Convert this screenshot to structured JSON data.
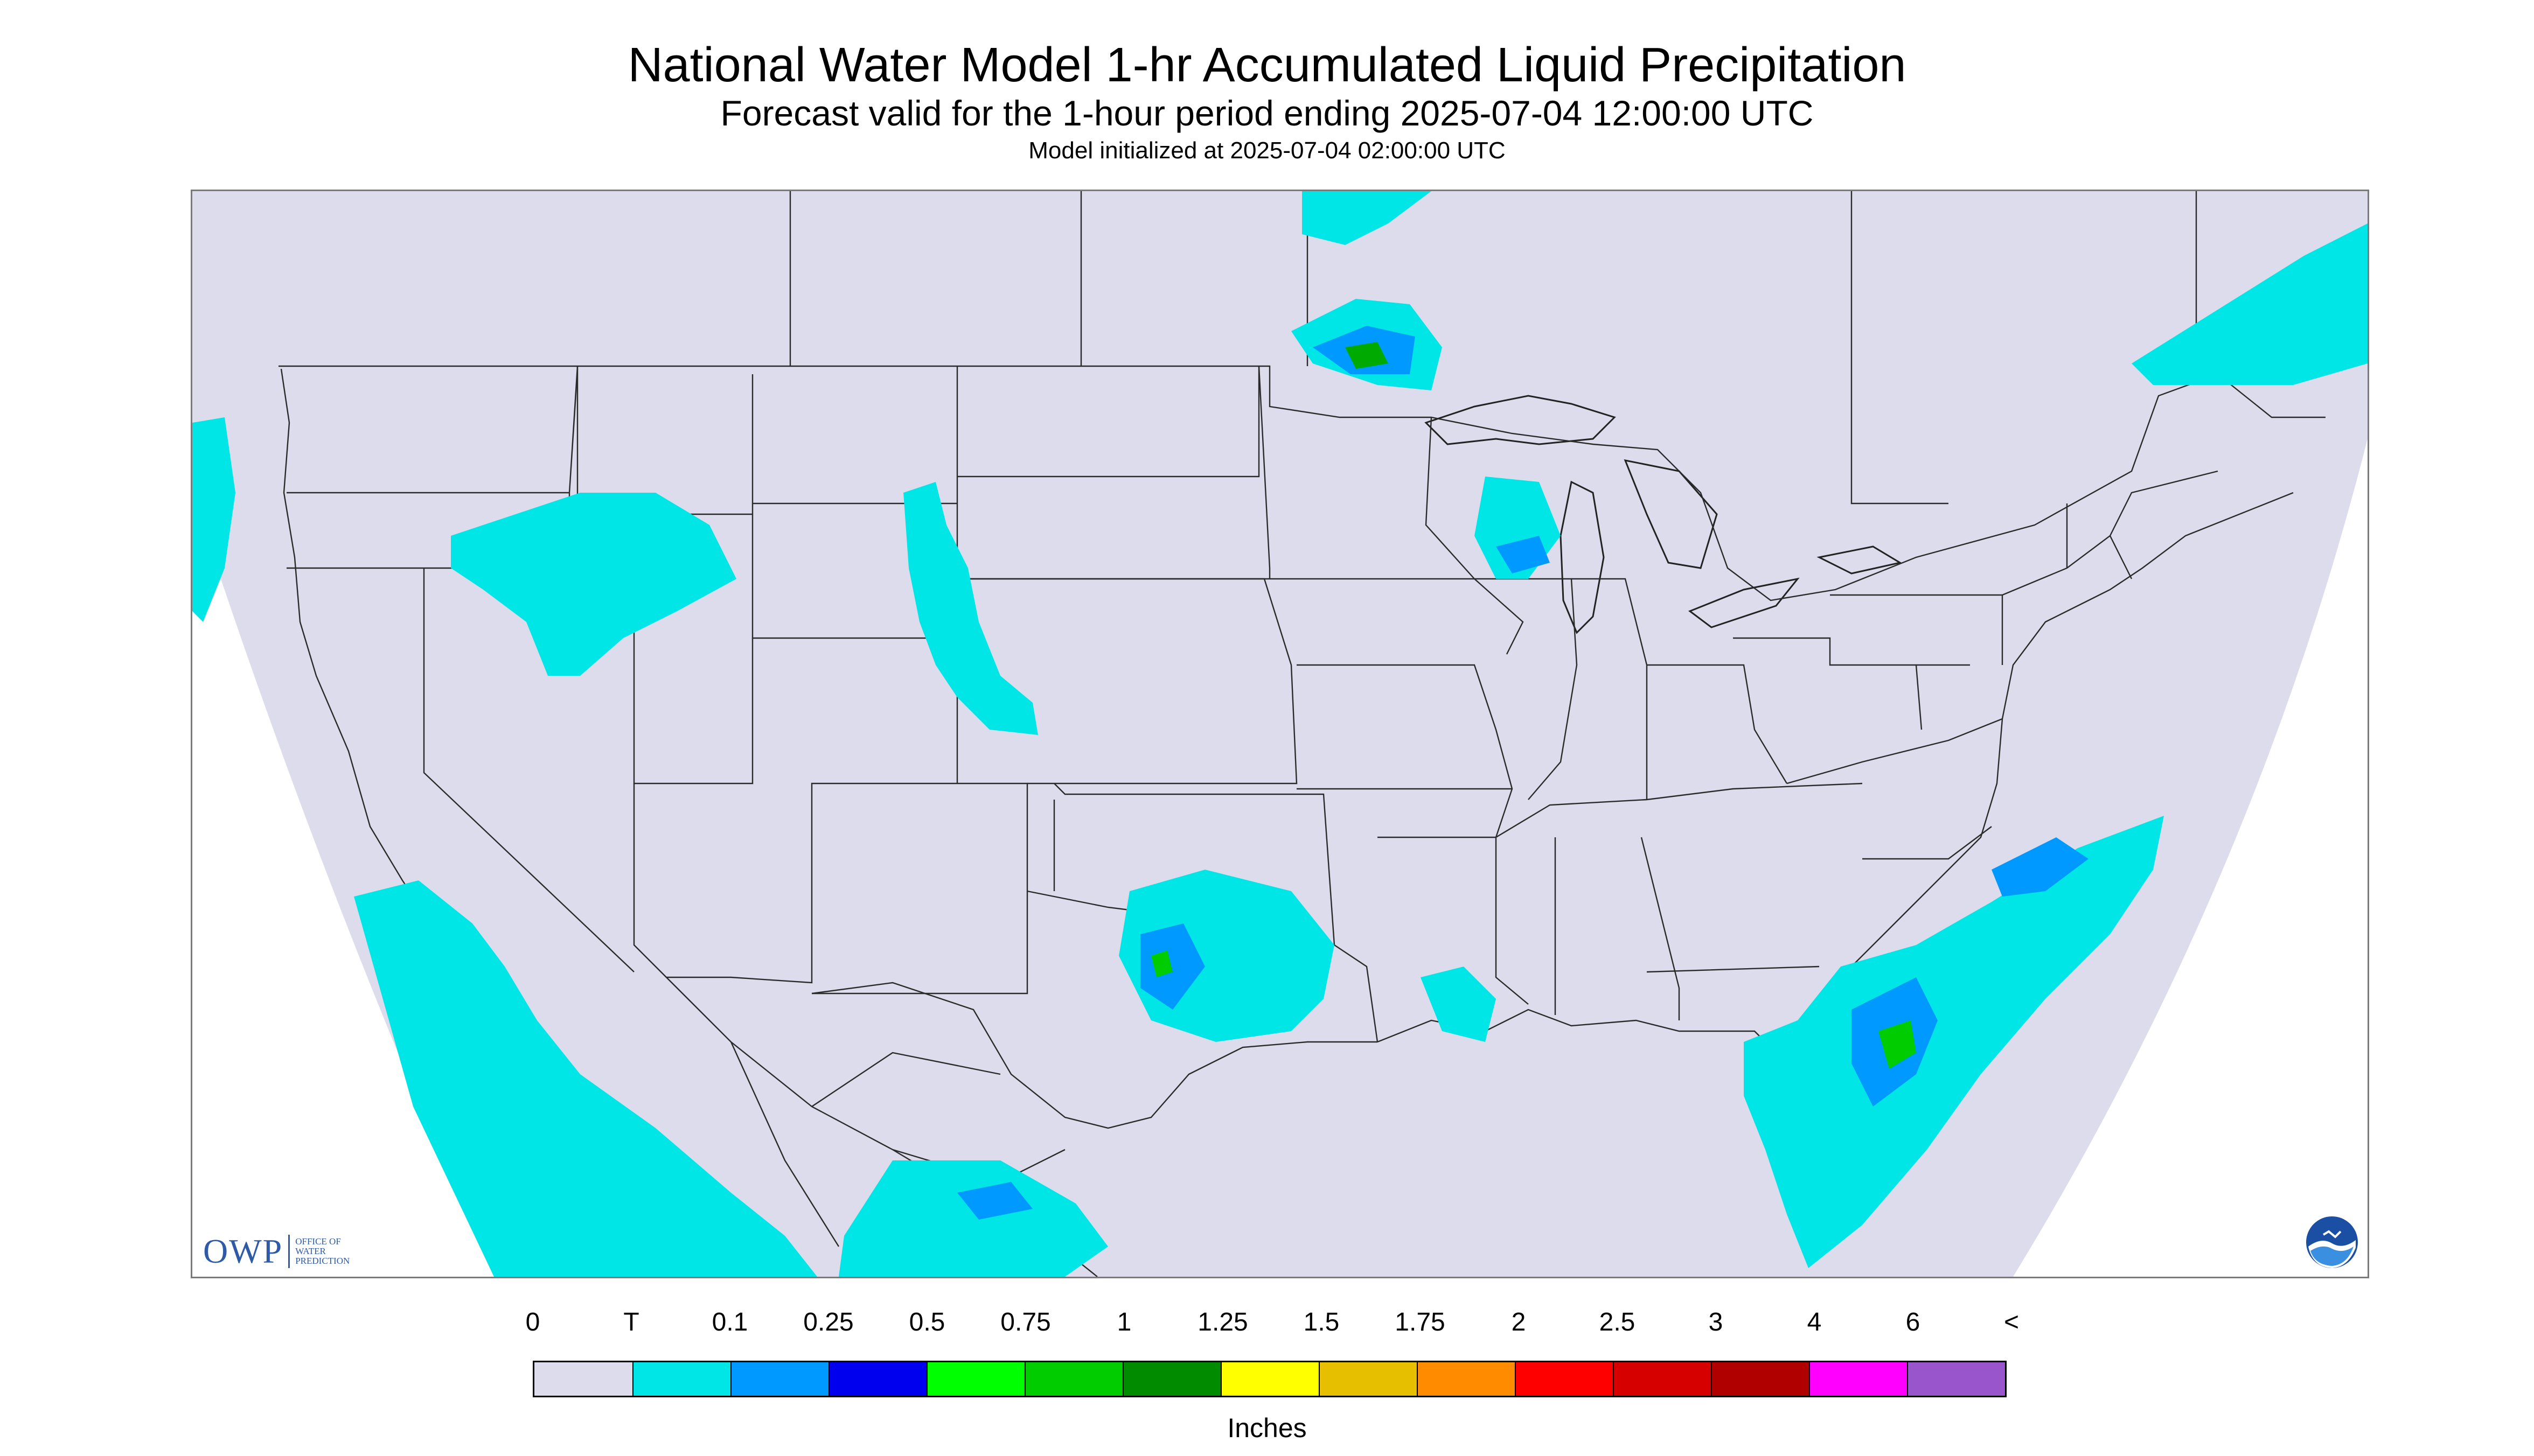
{
  "header": {
    "title": "National Water Model 1-hr Accumulated Liquid Precipitation",
    "subtitle": "Forecast valid for the 1-hour period ending 2025-07-04 12:00:00 UTC",
    "init_line": "Model initialized at 2025-07-04 02:00:00 UTC"
  },
  "map": {
    "background_color": "#dcdcec",
    "outside_domain_color": "#ffffff",
    "trace_color": "#00e5e5",
    "logos": {
      "owp_wordmark": "OWP",
      "owp_subtext": [
        "OFFICE OF",
        "WATER",
        "PREDICTION"
      ],
      "noaa_icon": "noaa-logo-icon"
    }
  },
  "legend": {
    "ticks": [
      "0",
      "T",
      "0.1",
      "0.25",
      "0.5",
      "0.75",
      "1",
      "1.25",
      "1.5",
      "1.75",
      "2",
      "2.5",
      "3",
      "4",
      "6",
      "<"
    ],
    "colors": [
      "#dcdcec",
      "#00e5e5",
      "#0099ff",
      "#0000ee",
      "#00ff00",
      "#00cc00",
      "#008b00",
      "#ffff00",
      "#e5bf00",
      "#ff8c00",
      "#ff0000",
      "#d70000",
      "#b00000",
      "#ff00ff",
      "#9955cc"
    ],
    "units": "Inches"
  }
}
